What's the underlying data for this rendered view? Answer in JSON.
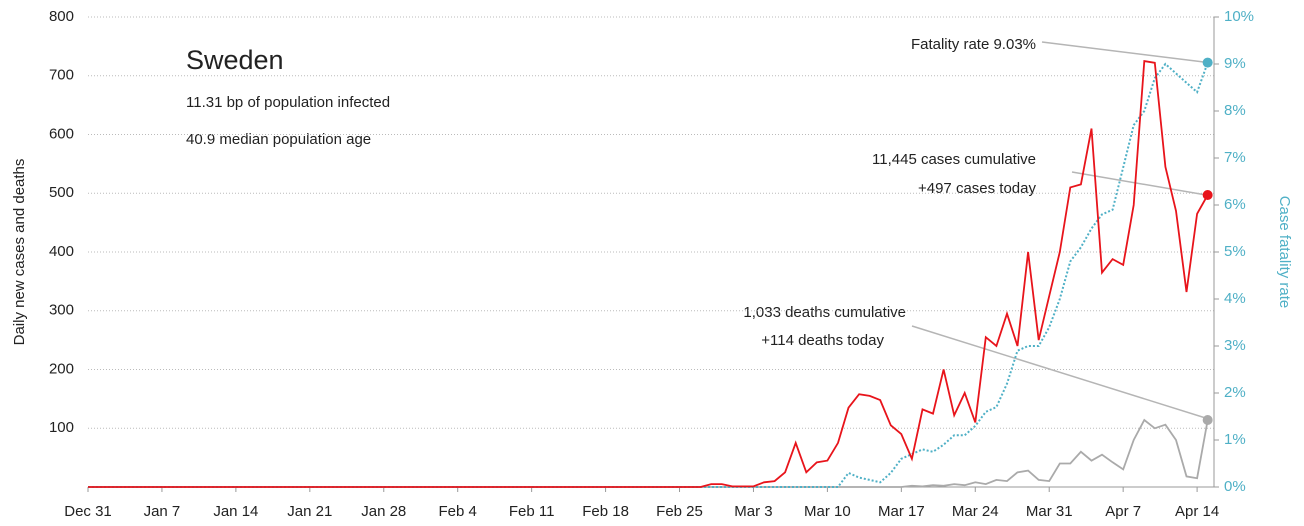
{
  "chart_data": {
    "type": "line",
    "title": "Sweden",
    "subtitle": [
      "11.31 bp of population infected",
      "40.9 median population age"
    ],
    "ylabel": "Daily new cases and deaths",
    "y2label": "Case fatality rate",
    "annotations": [
      "Fatality rate 9.03%",
      "11,445 cases cumulative",
      "+497 cases today",
      "1,033 deaths cumulative",
      "+114 deaths today"
    ],
    "x": [
      0,
      1,
      2,
      3,
      4,
      5,
      6,
      7,
      8,
      9,
      10,
      11,
      12,
      13,
      14,
      15,
      16,
      17,
      18,
      19,
      20,
      21,
      22,
      23,
      24,
      25,
      26,
      27,
      28,
      29,
      30,
      31,
      32,
      33,
      34,
      35,
      36,
      37,
      38,
      39,
      40,
      41,
      42,
      43,
      44,
      45,
      46,
      47,
      48,
      49,
      50,
      51,
      52,
      53,
      54,
      55,
      56,
      57,
      58,
      59,
      60,
      61,
      62,
      63,
      64,
      65,
      66,
      67,
      68,
      69,
      70,
      71,
      72,
      73,
      74,
      75,
      76,
      77,
      78,
      79,
      80,
      81,
      82,
      83,
      84,
      85,
      86,
      87,
      88,
      89,
      90,
      91,
      92,
      93,
      94,
      95,
      96,
      97,
      98,
      99,
      100,
      101,
      102,
      103,
      104,
      105,
      106
    ],
    "xlim": [
      0,
      106.6
    ],
    "xticks": [
      {
        "value": 0,
        "label": "Dec 31"
      },
      {
        "value": 7,
        "label": "Jan 7"
      },
      {
        "value": 14,
        "label": "Jan 14"
      },
      {
        "value": 21,
        "label": "Jan 21"
      },
      {
        "value": 28,
        "label": "Jan 28"
      },
      {
        "value": 35,
        "label": "Feb 4"
      },
      {
        "value": 42,
        "label": "Feb 11"
      },
      {
        "value": 49,
        "label": "Feb 18"
      },
      {
        "value": 56,
        "label": "Feb 25"
      },
      {
        "value": 63,
        "label": "Mar 3"
      },
      {
        "value": 70,
        "label": "Mar 10"
      },
      {
        "value": 77,
        "label": "Mar 17"
      },
      {
        "value": 84,
        "label": "Mar 24"
      },
      {
        "value": 91,
        "label": "Mar 31"
      },
      {
        "value": 98,
        "label": "Apr 7"
      },
      {
        "value": 105,
        "label": "Apr 14"
      }
    ],
    "ylim": [
      0,
      800
    ],
    "yticks": [
      100,
      200,
      300,
      400,
      500,
      600,
      700,
      800
    ],
    "y2lim": [
      0,
      10
    ],
    "y2ticks": [
      {
        "value": 0,
        "label": "0%"
      },
      {
        "value": 1,
        "label": "1%"
      },
      {
        "value": 2,
        "label": "2%"
      },
      {
        "value": 3,
        "label": "3%"
      },
      {
        "value": 4,
        "label": "4%"
      },
      {
        "value": 5,
        "label": "5%"
      },
      {
        "value": 6,
        "label": "6%"
      },
      {
        "value": 7,
        "label": "7%"
      },
      {
        "value": 8,
        "label": "8%"
      },
      {
        "value": 9,
        "label": "9%"
      },
      {
        "value": 10,
        "label": "10%"
      }
    ],
    "grid": true,
    "series": [
      {
        "name": "cases",
        "color": "#e8141b",
        "values": [
          0,
          0,
          0,
          0,
          0,
          0,
          0,
          0,
          0,
          0,
          0,
          0,
          0,
          0,
          0,
          0,
          0,
          0,
          0,
          0,
          0,
          0,
          0,
          0,
          0,
          0,
          0,
          0,
          0,
          0,
          0,
          0,
          0,
          0,
          0,
          0,
          0,
          0,
          0,
          0,
          0,
          0,
          0,
          0,
          0,
          0,
          0,
          0,
          0,
          0,
          0,
          0,
          0,
          0,
          0,
          0,
          0,
          0,
          0,
          5,
          5,
          1,
          1,
          1,
          8,
          10,
          25,
          75,
          25,
          42,
          45,
          75,
          135,
          158,
          155,
          148,
          105,
          90,
          48,
          132,
          125,
          200,
          122,
          160,
          110,
          255,
          240,
          295,
          240,
          400,
          250,
          325,
          400,
          510,
          515,
          610,
          365,
          388,
          378,
          480,
          725,
          722,
          545,
          470,
          332,
          465,
          497
        ]
      },
      {
        "name": "deaths",
        "color": "#aaaaaa",
        "values": [
          0,
          0,
          0,
          0,
          0,
          0,
          0,
          0,
          0,
          0,
          0,
          0,
          0,
          0,
          0,
          0,
          0,
          0,
          0,
          0,
          0,
          0,
          0,
          0,
          0,
          0,
          0,
          0,
          0,
          0,
          0,
          0,
          0,
          0,
          0,
          0,
          0,
          0,
          0,
          0,
          0,
          0,
          0,
          0,
          0,
          0,
          0,
          0,
          0,
          0,
          0,
          0,
          0,
          0,
          0,
          0,
          0,
          0,
          0,
          0,
          0,
          0,
          0,
          0,
          0,
          0,
          0,
          0,
          0,
          0,
          0,
          0,
          0,
          0,
          0,
          0,
          0,
          0,
          2,
          1,
          3,
          2,
          5,
          3,
          8,
          5,
          12,
          10,
          25,
          28,
          12,
          10,
          40,
          40,
          60,
          45,
          55,
          42,
          30,
          80,
          114,
          100,
          106,
          80,
          18,
          15,
          114
        ]
      },
      {
        "name": "fatality rate",
        "color": "#4fb0c6",
        "axis": "y2",
        "dashed": true,
        "values": [
          0,
          0,
          0,
          0,
          0,
          0,
          0,
          0,
          0,
          0,
          0,
          0,
          0,
          0,
          0,
          0,
          0,
          0,
          0,
          0,
          0,
          0,
          0,
          0,
          0,
          0,
          0,
          0,
          0,
          0,
          0,
          0,
          0,
          0,
          0,
          0,
          0,
          0,
          0,
          0,
          0,
          0,
          0,
          0,
          0,
          0,
          0,
          0,
          0,
          0,
          0,
          0,
          0,
          0,
          0,
          0,
          0,
          0,
          0,
          0,
          0,
          0,
          0,
          0,
          0,
          0,
          0,
          0,
          0,
          0,
          0,
          0,
          0.3,
          0.2,
          0.15,
          0.1,
          0.3,
          0.6,
          0.7,
          0.8,
          0.75,
          0.9,
          1.1,
          1.1,
          1.3,
          1.6,
          1.7,
          2.2,
          2.9,
          3.0,
          3.0,
          3.4,
          4.0,
          4.8,
          5.1,
          5.5,
          5.8,
          5.9,
          6.8,
          7.7,
          8.0,
          8.7,
          9.0,
          8.8,
          8.6,
          8.4,
          9.03
        ]
      }
    ]
  }
}
